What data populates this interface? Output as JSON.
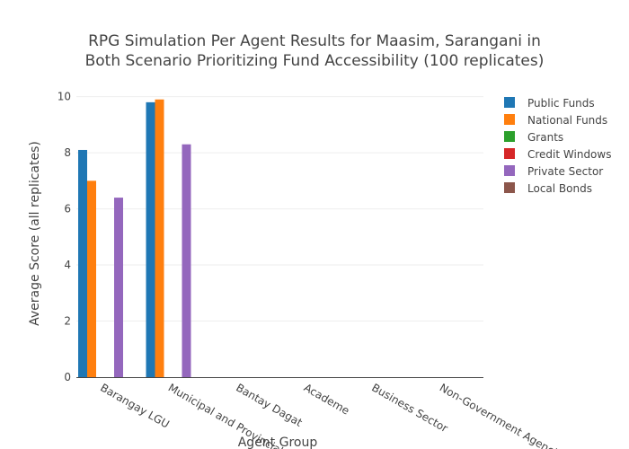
{
  "chart_data": {
    "type": "bar",
    "title_lines": [
      "RPG Simulation Per Agent Results for Maasim, Sarangani in",
      "Both Scenario Prioritizing Fund Accessibility (100 replicates)"
    ],
    "xlabel": "Agent Group",
    "ylabel": "Average Score (all replicates)",
    "ylim": [
      0,
      10.5
    ],
    "yticks": [
      0,
      2,
      4,
      6,
      8,
      10
    ],
    "grid": true,
    "legend_position": "top-right",
    "categories": [
      "Barangay LGU",
      "Municipal and Provincial",
      "Bantay Dagat",
      "Academe",
      "Business Sector",
      "Non-Government Agencies"
    ],
    "series": [
      {
        "name": "Public Funds",
        "color": "#1f77b4",
        "values": [
          8.1,
          9.8,
          0,
          0,
          0,
          0
        ]
      },
      {
        "name": "National Funds",
        "color": "#ff7f0e",
        "values": [
          7.0,
          9.9,
          0,
          0,
          0,
          0
        ]
      },
      {
        "name": "Grants",
        "color": "#2ca02c",
        "values": [
          0,
          0,
          0,
          0,
          0,
          0
        ]
      },
      {
        "name": "Credit Windows",
        "color": "#d62728",
        "values": [
          0,
          0,
          0,
          0,
          0,
          0
        ]
      },
      {
        "name": "Private Sector",
        "color": "#9467bd",
        "values": [
          6.4,
          8.3,
          0,
          0,
          0,
          0
        ]
      },
      {
        "name": "Local Bonds",
        "color": "#8c564b",
        "values": [
          0,
          0,
          0,
          0,
          0,
          0
        ]
      }
    ]
  }
}
